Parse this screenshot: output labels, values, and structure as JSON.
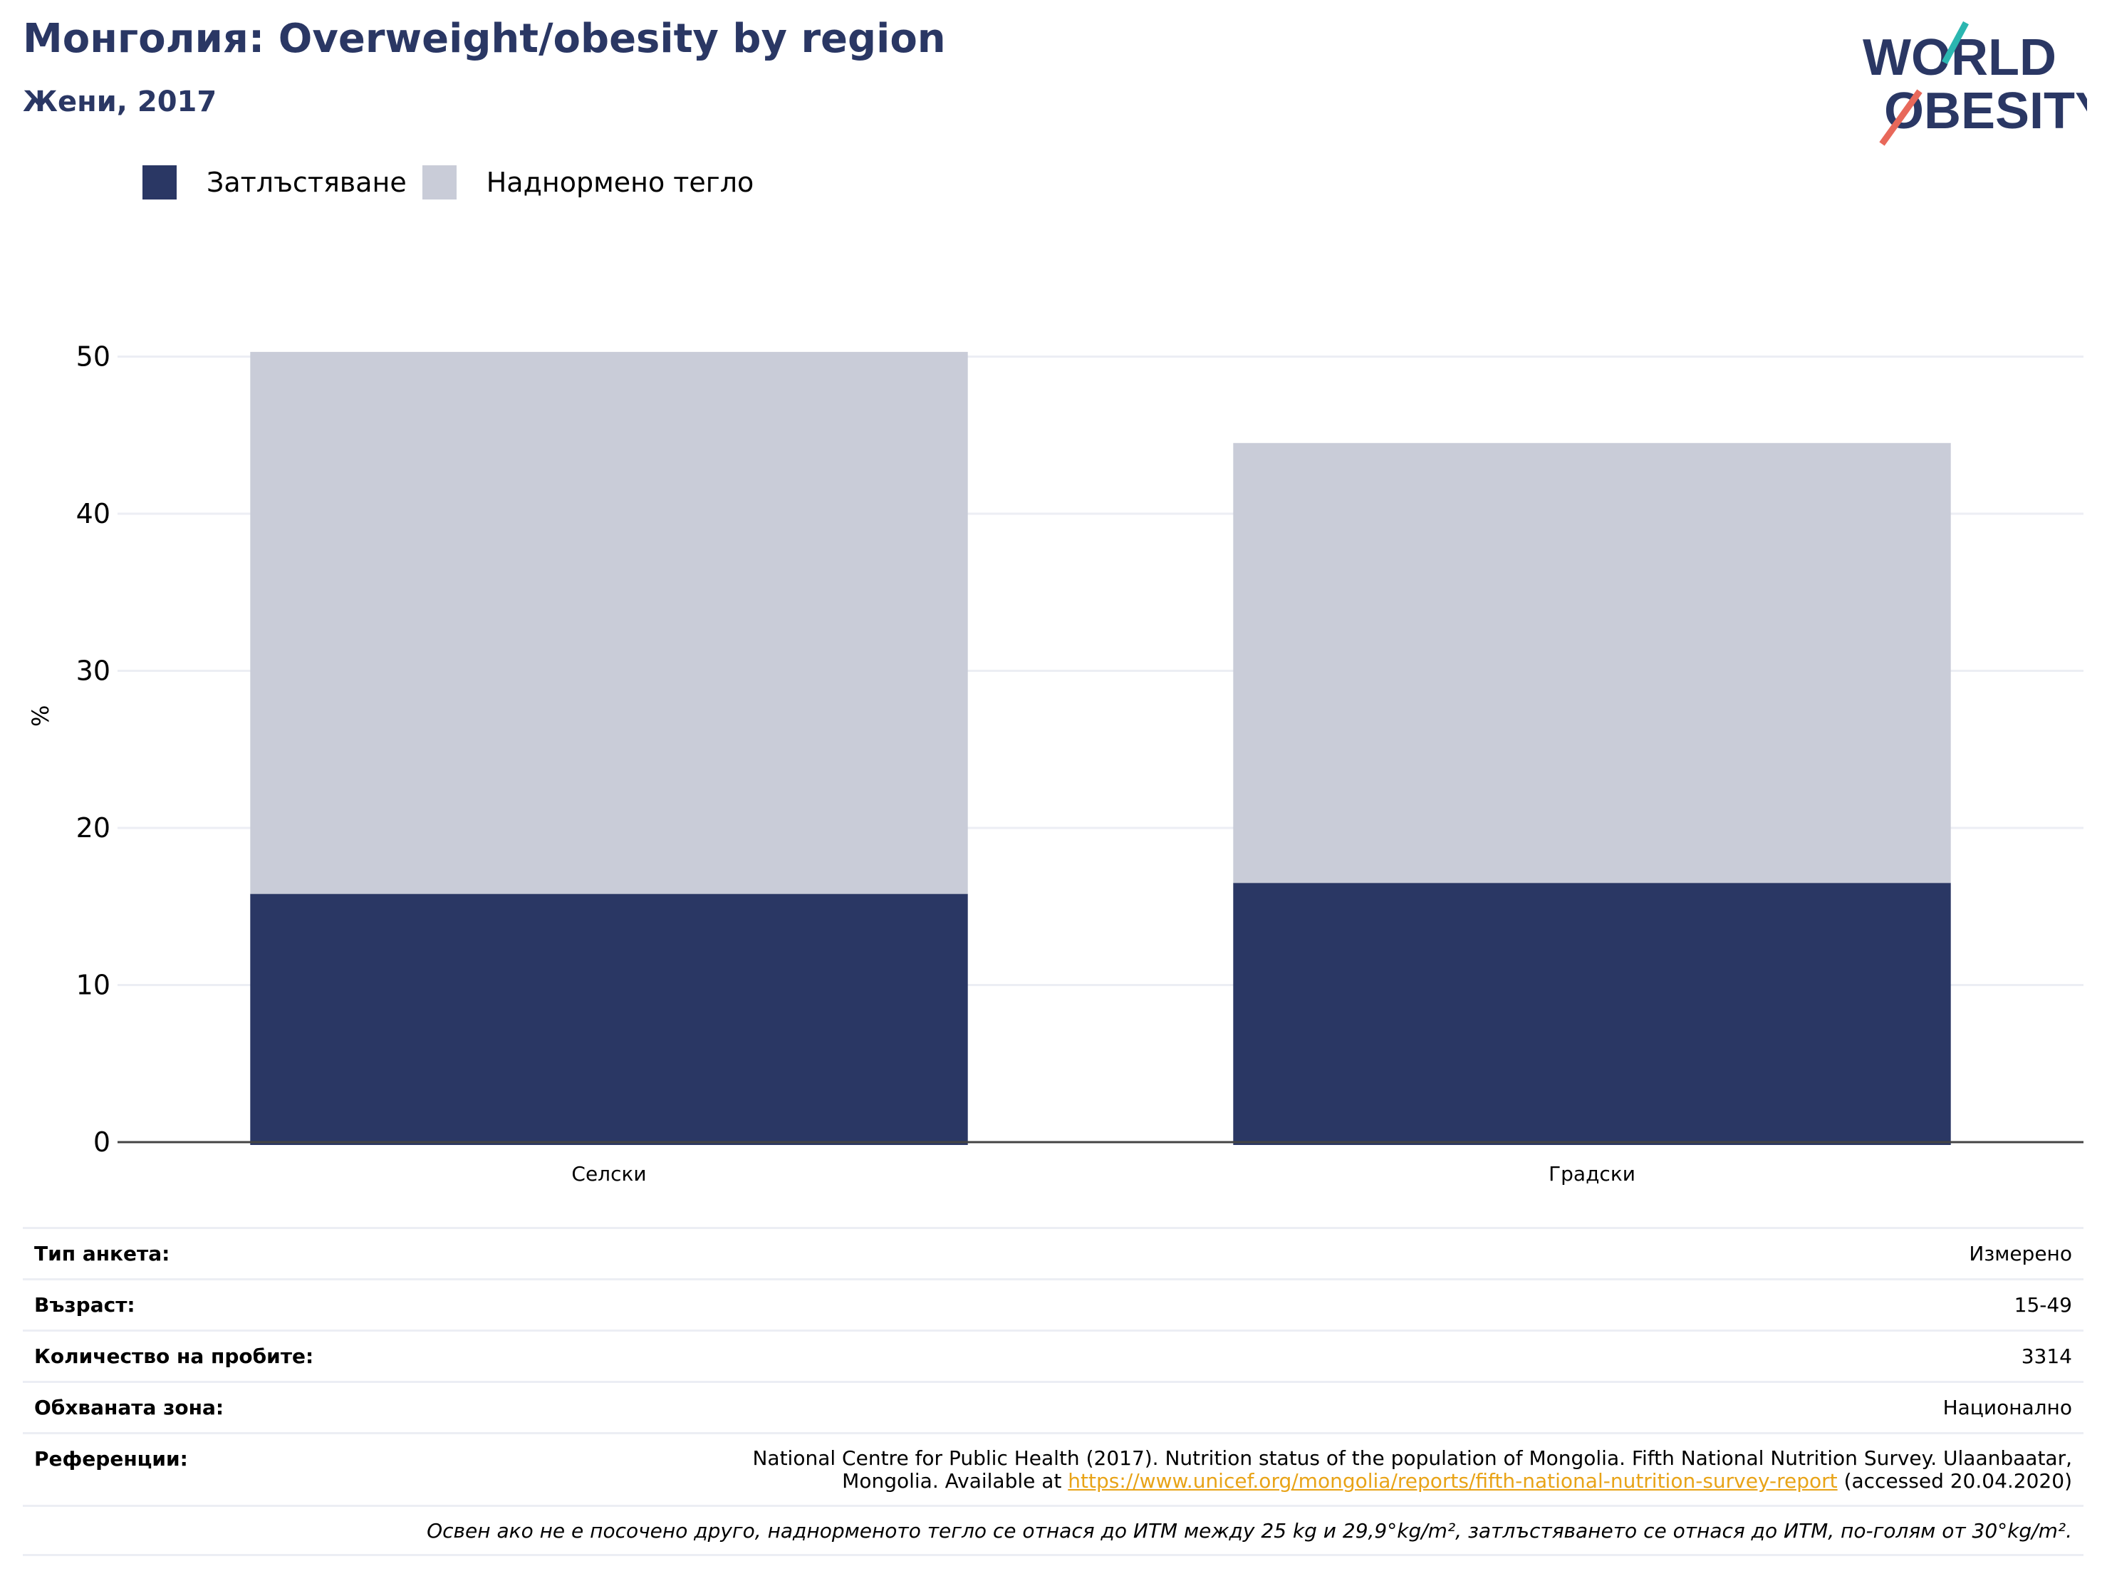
{
  "header": {
    "title": "Монголия: Overweight/obesity by region",
    "subtitle": "Жени, 2017"
  },
  "logo": {
    "line1": "WORLD",
    "line2": "OBESITY"
  },
  "colors": {
    "obesity": "#2a3764",
    "overweight": "#c9ccd8",
    "accent_teal": "#2bb6b0",
    "accent_coral": "#e8685a"
  },
  "chart_data": {
    "type": "bar",
    "stacked": true,
    "categories": [
      "Селски",
      "Градски"
    ],
    "series": [
      {
        "name": "Затлъстяване",
        "values": [
          15.8,
          16.5
        ]
      },
      {
        "name": "Наднормено тегло",
        "values": [
          34.5,
          28.0
        ]
      }
    ],
    "ylabel": "%",
    "yticks": [
      0,
      10,
      20,
      30,
      40,
      50
    ],
    "ylim": [
      0,
      55
    ],
    "grid": true,
    "legend": "top-left"
  },
  "info": {
    "survey_type_label": "Тип анкета:",
    "survey_type_value": "Измерено",
    "age_label": "Възраст:",
    "age_value": "15-49",
    "sample_label": "Количество на пробите:",
    "sample_value": "3314",
    "area_label": "Обхваната зона:",
    "area_value": "Национално",
    "ref_label": "Референции:",
    "ref_text_1": "National Centre for Public Health (2017). Nutrition status of the population of Mongolia. Fifth National Nutrition Survey. Ulaanbaatar,",
    "ref_text_2": "Mongolia. Available at ",
    "ref_link": "https://www.unicef.org/mongolia/reports/fifth-national-nutrition-survey-report",
    "ref_text_3": " (accessed 20.04.2020)",
    "note": "Освен ако не е посочено друго, наднорменото тегло се отнася до ИТМ между 25 kg и 29,9°kg/m², затлъстяването се отнася до ИТМ, по-голям от 30°kg/m²."
  }
}
